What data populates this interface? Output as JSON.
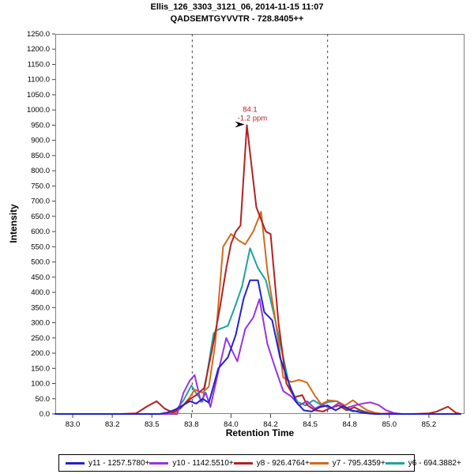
{
  "title": {
    "line1": "Ellis_126_3303_3121_06, 2014-11-15 11:07",
    "line2": "QADSEMTGYVVTR - 728.8405++"
  },
  "axes": {
    "x": {
      "label": "Retention Time",
      "min": 82.89,
      "max": 85.475,
      "ticks": [
        {
          "v": 83.0,
          "t": "83.0"
        },
        {
          "v": 83.25,
          "t": "83.2"
        },
        {
          "v": 83.5,
          "t": "83.5"
        },
        {
          "v": 83.75,
          "t": "83.8"
        },
        {
          "v": 84.0,
          "t": "84.0"
        },
        {
          "v": 84.25,
          "t": "84.2"
        },
        {
          "v": 84.5,
          "t": "84.5"
        },
        {
          "v": 84.75,
          "t": "84.8"
        },
        {
          "v": 85.0,
          "t": "85.0"
        },
        {
          "v": 85.25,
          "t": "85.2"
        }
      ]
    },
    "y": {
      "label": "Intensity",
      "min": 0,
      "max": 1250,
      "ticks": [
        {
          "v": 0,
          "t": "0.0"
        },
        {
          "v": 50,
          "t": "50.0"
        },
        {
          "v": 100,
          "t": "100.0"
        },
        {
          "v": 150,
          "t": "150.0"
        },
        {
          "v": 200,
          "t": "200.0"
        },
        {
          "v": 250,
          "t": "250.0"
        },
        {
          "v": 300,
          "t": "300.0"
        },
        {
          "v": 350,
          "t": "350.0"
        },
        {
          "v": 400,
          "t": "400.0"
        },
        {
          "v": 450,
          "t": "450.0"
        },
        {
          "v": 500,
          "t": "500.0"
        },
        {
          "v": 550,
          "t": "550.0"
        },
        {
          "v": 600,
          "t": "600.0"
        },
        {
          "v": 650,
          "t": "650.0"
        },
        {
          "v": 700,
          "t": "700.0"
        },
        {
          "v": 750,
          "t": "750.0"
        },
        {
          "v": 800,
          "t": "800.0"
        },
        {
          "v": 850,
          "t": "850.0"
        },
        {
          "v": 900,
          "t": "900.0"
        },
        {
          "v": 950,
          "t": "950.0"
        },
        {
          "v": 1000,
          "t": "1000.0"
        },
        {
          "v": 1050,
          "t": "1050.0"
        },
        {
          "v": 1100,
          "t": "1100.0"
        },
        {
          "v": 1150,
          "t": "1150.0"
        },
        {
          "v": 1200,
          "t": "1200.0"
        },
        {
          "v": 1250,
          "t": "1250.0"
        }
      ]
    }
  },
  "colors": {
    "frame": "#808080",
    "tick": "#404040",
    "boundary": "#444444",
    "annotation": "#b22222",
    "arrow": "#000000"
  },
  "chart_data": {
    "type": "line",
    "title": "Ellis_126_3303_3121_06, 2014-11-15 11:07",
    "subtitle": "QADSEMTGYVVTR - 728.8405++",
    "xlabel": "Retention Time",
    "ylabel": "Intensity",
    "xlim": [
      82.89,
      85.475
    ],
    "ylim": [
      0,
      1250
    ],
    "grid": false,
    "legend_position": "bottom",
    "integration_boundaries": [
      83.755,
      84.61
    ],
    "peak_annotation": {
      "x": 84.1,
      "y": 950,
      "rt_text": "84.1",
      "ppm_text": "-1.2 ppm"
    },
    "draw_order": [
      4,
      3,
      2,
      1,
      0
    ],
    "series": [
      {
        "name": "y11",
        "label": "y11 - 1257.5780+",
        "color": "#2222cc",
        "points": [
          [
            82.89,
            0
          ],
          [
            83.0,
            0
          ],
          [
            83.1,
            0
          ],
          [
            83.2,
            0
          ],
          [
            83.3,
            0
          ],
          [
            83.4,
            0
          ],
          [
            83.5,
            0
          ],
          [
            83.55,
            0
          ],
          [
            83.6,
            5
          ],
          [
            83.65,
            15
          ],
          [
            83.7,
            30
          ],
          [
            83.74,
            42
          ],
          [
            83.78,
            34
          ],
          [
            83.82,
            50
          ],
          [
            83.86,
            37
          ],
          [
            83.92,
            150
          ],
          [
            83.98,
            186
          ],
          [
            84.03,
            260
          ],
          [
            84.08,
            380
          ],
          [
            84.12,
            440
          ],
          [
            84.17,
            440
          ],
          [
            84.21,
            335
          ],
          [
            84.26,
            308
          ],
          [
            84.31,
            185
          ],
          [
            84.36,
            110
          ],
          [
            84.41,
            40
          ],
          [
            84.46,
            12
          ],
          [
            84.51,
            8
          ],
          [
            84.56,
            22
          ],
          [
            84.61,
            28
          ],
          [
            84.66,
            12
          ],
          [
            84.71,
            26
          ],
          [
            84.76,
            12
          ],
          [
            84.81,
            6
          ],
          [
            84.86,
            2
          ],
          [
            84.91,
            0
          ],
          [
            85.0,
            0
          ],
          [
            85.1,
            0
          ],
          [
            85.2,
            0
          ],
          [
            85.3,
            0
          ],
          [
            85.4,
            0
          ],
          [
            85.45,
            0
          ]
        ]
      },
      {
        "name": "y10",
        "label": "y10 - 1142.5510+",
        "color": "#9933e0",
        "points": [
          [
            82.89,
            0
          ],
          [
            83.0,
            0
          ],
          [
            83.2,
            0
          ],
          [
            83.4,
            0
          ],
          [
            83.55,
            0
          ],
          [
            83.62,
            0
          ],
          [
            83.66,
            0
          ],
          [
            83.7,
            70
          ],
          [
            83.74,
            110
          ],
          [
            83.77,
            128
          ],
          [
            83.81,
            40
          ],
          [
            83.84,
            70
          ],
          [
            83.87,
            23
          ],
          [
            83.92,
            140
          ],
          [
            83.97,
            250
          ],
          [
            84.01,
            205
          ],
          [
            84.04,
            173
          ],
          [
            84.09,
            280
          ],
          [
            84.14,
            317
          ],
          [
            84.18,
            378
          ],
          [
            84.23,
            230
          ],
          [
            84.28,
            150
          ],
          [
            84.33,
            75
          ],
          [
            84.38,
            58
          ],
          [
            84.43,
            28
          ],
          [
            84.48,
            42
          ],
          [
            84.53,
            18
          ],
          [
            84.58,
            30
          ],
          [
            84.63,
            18
          ],
          [
            84.68,
            36
          ],
          [
            84.73,
            20
          ],
          [
            84.78,
            28
          ],
          [
            84.83,
            34
          ],
          [
            84.88,
            38
          ],
          [
            84.93,
            30
          ],
          [
            84.98,
            12
          ],
          [
            85.03,
            3
          ],
          [
            85.08,
            0
          ],
          [
            85.2,
            0
          ],
          [
            85.3,
            0
          ],
          [
            85.45,
            0
          ]
        ]
      },
      {
        "name": "y8",
        "label": "y8 - 926.4764+",
        "color": "#b22222",
        "points": [
          [
            82.89,
            0
          ],
          [
            83.0,
            0
          ],
          [
            83.1,
            0
          ],
          [
            83.2,
            0
          ],
          [
            83.3,
            0
          ],
          [
            83.4,
            2
          ],
          [
            83.47,
            25
          ],
          [
            83.53,
            42
          ],
          [
            83.58,
            18
          ],
          [
            83.63,
            5
          ],
          [
            83.68,
            18
          ],
          [
            83.73,
            45
          ],
          [
            83.78,
            62
          ],
          [
            83.83,
            85
          ],
          [
            83.88,
            210
          ],
          [
            83.93,
            350
          ],
          [
            83.97,
            480
          ],
          [
            84.0,
            560
          ],
          [
            84.03,
            600
          ],
          [
            84.06,
            620
          ],
          [
            84.1,
            950
          ],
          [
            84.16,
            680
          ],
          [
            84.22,
            600
          ],
          [
            84.25,
            592
          ],
          [
            84.3,
            300
          ],
          [
            84.35,
            100
          ],
          [
            84.4,
            55
          ],
          [
            84.45,
            62
          ],
          [
            84.48,
            30
          ],
          [
            84.53,
            12
          ],
          [
            84.58,
            8
          ],
          [
            84.63,
            20
          ],
          [
            84.68,
            28
          ],
          [
            84.73,
            12
          ],
          [
            84.78,
            22
          ],
          [
            84.83,
            8
          ],
          [
            84.88,
            2
          ],
          [
            84.93,
            0
          ],
          [
            85.0,
            2
          ],
          [
            85.05,
            0
          ],
          [
            85.15,
            0
          ],
          [
            85.25,
            2
          ],
          [
            85.3,
            8
          ],
          [
            85.37,
            24
          ],
          [
            85.42,
            4
          ],
          [
            85.45,
            0
          ]
        ]
      },
      {
        "name": "y7",
        "label": "y7 - 795.4359+",
        "color": "#d2691e",
        "points": [
          [
            82.89,
            0
          ],
          [
            83.0,
            0
          ],
          [
            83.2,
            0
          ],
          [
            83.4,
            0
          ],
          [
            83.55,
            0
          ],
          [
            83.6,
            0
          ],
          [
            83.65,
            5
          ],
          [
            83.7,
            30
          ],
          [
            83.74,
            55
          ],
          [
            83.77,
            80
          ],
          [
            83.82,
            70
          ],
          [
            83.86,
            90
          ],
          [
            83.9,
            230
          ],
          [
            83.95,
            550
          ],
          [
            84.0,
            592
          ],
          [
            84.05,
            570
          ],
          [
            84.09,
            558
          ],
          [
            84.14,
            600
          ],
          [
            84.19,
            665
          ],
          [
            84.23,
            470
          ],
          [
            84.28,
            310
          ],
          [
            84.33,
            120
          ],
          [
            84.38,
            105
          ],
          [
            84.43,
            112
          ],
          [
            84.48,
            103
          ],
          [
            84.53,
            60
          ],
          [
            84.57,
            32
          ],
          [
            84.62,
            45
          ],
          [
            84.67,
            42
          ],
          [
            84.72,
            28
          ],
          [
            84.77,
            45
          ],
          [
            84.81,
            29
          ],
          [
            84.86,
            12
          ],
          [
            84.91,
            4
          ],
          [
            84.96,
            0
          ],
          [
            85.1,
            0
          ],
          [
            85.3,
            0
          ],
          [
            85.45,
            0
          ]
        ]
      },
      {
        "name": "y6",
        "label": "y6 - 694.3882+",
        "color": "#1fa39b",
        "points": [
          [
            82.89,
            0
          ],
          [
            83.0,
            0
          ],
          [
            83.2,
            0
          ],
          [
            83.4,
            0
          ],
          [
            83.55,
            0
          ],
          [
            83.6,
            0
          ],
          [
            83.65,
            10
          ],
          [
            83.7,
            45
          ],
          [
            83.75,
            94
          ],
          [
            83.78,
            68
          ],
          [
            83.82,
            40
          ],
          [
            83.89,
            265
          ],
          [
            83.92,
            278
          ],
          [
            83.98,
            290
          ],
          [
            84.03,
            360
          ],
          [
            84.07,
            420
          ],
          [
            84.12,
            545
          ],
          [
            84.17,
            480
          ],
          [
            84.22,
            440
          ],
          [
            84.27,
            330
          ],
          [
            84.32,
            210
          ],
          [
            84.37,
            90
          ],
          [
            84.42,
            40
          ],
          [
            84.47,
            28
          ],
          [
            84.52,
            45
          ],
          [
            84.57,
            30
          ],
          [
            84.62,
            40
          ],
          [
            84.67,
            42
          ],
          [
            84.72,
            18
          ],
          [
            84.77,
            8
          ],
          [
            84.82,
            12
          ],
          [
            84.87,
            4
          ],
          [
            84.92,
            0
          ],
          [
            85.1,
            0
          ],
          [
            85.3,
            0
          ],
          [
            85.45,
            0
          ]
        ]
      }
    ]
  }
}
